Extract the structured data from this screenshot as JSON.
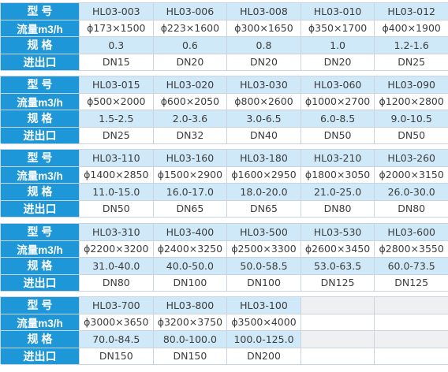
{
  "row_labels": {
    "model": "型 号",
    "flow": "流量m3/h",
    "spec": "规  格",
    "inlet": "进出口"
  },
  "blocks": [
    {
      "models": [
        "HL03-003",
        "HL03-006",
        "HL03-008",
        "HL03-010",
        "HL03-012"
      ],
      "flows": [
        "ϕ173×1500",
        "ϕ223×1600",
        "ϕ300×1650",
        "ϕ350×1700",
        "ϕ400×1900"
      ],
      "specs": [
        "0.3",
        "0.6",
        "0.8",
        "1.0",
        "1.2-1.6"
      ],
      "inlets": [
        "DN15",
        "DN20",
        "DN20",
        "DN20",
        "DN25"
      ]
    },
    {
      "models": [
        "HL03-015",
        "HL03-020",
        "HL03-030",
        "HL03-060",
        "HL03-090"
      ],
      "flows": [
        "ϕ500×2000",
        "ϕ600×2050",
        "ϕ800×2600",
        "ϕ1000×2700",
        "ϕ1200×2800"
      ],
      "specs": [
        "1.5-2.5",
        "2.0-3.6",
        "3.0-6.5",
        "6.0-8.5",
        "9.0-10.5"
      ],
      "inlets": [
        "DN25",
        "DN32",
        "DN40",
        "DN50",
        "DN50"
      ]
    },
    {
      "models": [
        "HL03-110",
        "HL03-160",
        "HL03-180",
        "HL03-210",
        "HL03-260"
      ],
      "flows": [
        "ϕ1400×2850",
        "ϕ1500×2900",
        "ϕ1600×2950",
        "ϕ1800×3050",
        "ϕ2000×3150"
      ],
      "specs": [
        "11.0-15.0",
        "16.0-17.0",
        "18.0-20.0",
        "21.0-25.0",
        "26.0-30.0"
      ],
      "inlets": [
        "DN50",
        "DN65",
        "DN65",
        "DN80",
        "DN80"
      ]
    },
    {
      "models": [
        "HL03-310",
        "HL03-400",
        "HL03-500",
        "HL03-530",
        "HL03-600"
      ],
      "flows": [
        "ϕ2200×3200",
        "ϕ2400×3250",
        "ϕ2500×3300",
        "ϕ2600×3450",
        "ϕ2800×3550"
      ],
      "specs": [
        "31.0-40.0",
        "40.0-50.0",
        "50.0-58.5",
        "53.0-63.5",
        "60.0-73.5"
      ],
      "inlets": [
        "DN80",
        "DN100",
        "DN100",
        "DN125",
        "DN125"
      ]
    },
    {
      "models": [
        "HL03-700",
        "HL03-800",
        "HL03-100",
        "",
        ""
      ],
      "flows": [
        "ϕ3000×3650",
        "ϕ3200×3750",
        "ϕ3500×4000",
        "",
        ""
      ],
      "specs": [
        "70.0-84.5",
        "80.0-100.0",
        "100.0-125.0",
        "",
        ""
      ],
      "inlets": [
        "DN150",
        "DN150",
        "DN200",
        "",
        ""
      ]
    }
  ]
}
